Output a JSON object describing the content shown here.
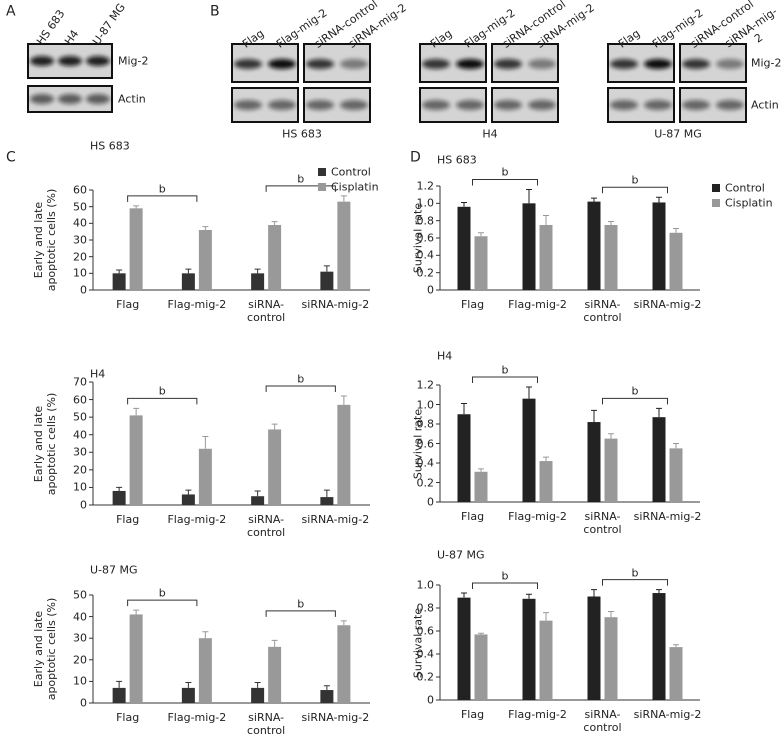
{
  "panels": [
    "A",
    "B",
    "C",
    "D"
  ],
  "blots": {
    "A": {
      "lanes": [
        "HS 683",
        "H4",
        "U-87 MG"
      ],
      "rows": [
        "Mig-2",
        "Actin"
      ]
    },
    "B": {
      "lanes": [
        "Flag",
        "Flag-mig-2",
        "siRNA-control",
        "siRNA-mig-2"
      ],
      "groups": [
        "HS 683",
        "H4",
        "U-87 MG"
      ],
      "rows": [
        "Mig-2",
        "Actin"
      ]
    }
  },
  "chart_data": [
    {
      "type": "bar",
      "title": "HS 683",
      "ylabel": "Early and late\napoptotic cells (%)",
      "categories": [
        "Flag",
        "Flag-mig-2",
        "siRNA-\ncontrol",
        "siRNA-mig-2"
      ],
      "series": [
        {
          "name": "Control",
          "color": "#333333",
          "values": [
            10,
            10,
            10,
            11
          ],
          "errors": [
            2,
            2.5,
            2.5,
            3.5
          ]
        },
        {
          "name": "Cisplatin",
          "color": "#999999",
          "values": [
            49,
            36,
            39,
            53
          ],
          "errors": [
            1.5,
            2,
            2,
            3.5
          ]
        }
      ],
      "ylim": [
        0,
        60
      ],
      "yticks": [
        0,
        10,
        20,
        30,
        40,
        50,
        60
      ],
      "legend": "upper right",
      "brackets": [
        {
          "label": "b",
          "between": [
            0,
            1
          ]
        },
        {
          "label": "b",
          "between": [
            2,
            3
          ]
        }
      ]
    },
    {
      "type": "bar",
      "title": "H4",
      "ylabel": "Early and late\napoptotic cells (%)",
      "categories": [
        "Flag",
        "Flag-mig-2",
        "siRNA-\ncontrol",
        "siRNA-mig-2"
      ],
      "series": [
        {
          "color": "#333333",
          "values": [
            8,
            6,
            5,
            4.5
          ],
          "errors": [
            2,
            2.5,
            3,
            4
          ]
        },
        {
          "color": "#999999",
          "values": [
            51,
            32,
            43,
            57
          ],
          "errors": [
            4,
            7,
            3,
            5
          ]
        }
      ],
      "ylim": [
        0,
        70
      ],
      "yticks": [
        0,
        10,
        20,
        30,
        40,
        50,
        60,
        70
      ],
      "brackets": [
        {
          "label": "b",
          "between": [
            0,
            1
          ]
        },
        {
          "label": "b",
          "between": [
            2,
            3
          ]
        }
      ]
    },
    {
      "type": "bar",
      "title": "U-87 MG",
      "ylabel": "Early and late\napoptotic cells (%)",
      "categories": [
        "Flag",
        "Flag-mig-2",
        "siRNA-\ncontrol",
        "siRNA-mig-2"
      ],
      "series": [
        {
          "color": "#333333",
          "values": [
            7,
            7,
            7,
            6
          ],
          "errors": [
            3,
            2.5,
            2.5,
            2
          ]
        },
        {
          "color": "#999999",
          "values": [
            41,
            30,
            26,
            36
          ],
          "errors": [
            2,
            3,
            3,
            2
          ]
        }
      ],
      "ylim": [
        0,
        50
      ],
      "yticks": [
        0,
        10,
        20,
        30,
        40,
        50
      ],
      "brackets": [
        {
          "label": "b",
          "between": [
            0,
            1
          ]
        },
        {
          "label": "b",
          "between": [
            2,
            3
          ]
        }
      ]
    },
    {
      "type": "bar",
      "title": "HS 683",
      "ylabel": "Survival rate",
      "categories": [
        "Flag",
        "Flag-mig-2",
        "siRNA-\ncontrol",
        "siRNA-mig-2"
      ],
      "series": [
        {
          "name": "Control",
          "color": "#222222",
          "values": [
            0.96,
            1.0,
            1.02,
            1.01
          ],
          "errors": [
            0.05,
            0.16,
            0.04,
            0.06
          ]
        },
        {
          "name": "Cisplatin",
          "color": "#999999",
          "values": [
            0.62,
            0.75,
            0.75,
            0.66
          ],
          "errors": [
            0.04,
            0.11,
            0.04,
            0.05
          ]
        }
      ],
      "ylim": [
        0,
        1.2
      ],
      "yticks": [
        0,
        0.2,
        0.4,
        0.6,
        0.8,
        {
          "value": 1,
          "label": "1.0"
        },
        1.2
      ],
      "legend": "right",
      "brackets": [
        {
          "label": "b",
          "between": [
            0,
            1
          ]
        },
        {
          "label": "b",
          "between": [
            2,
            3
          ]
        }
      ]
    },
    {
      "type": "bar",
      "title": "H4",
      "ylabel": "Survival rate",
      "categories": [
        "Flag",
        "Flag-mig-2",
        "siRNA-\ncontrol",
        "siRNA-mig-2"
      ],
      "series": [
        {
          "color": "#222222",
          "values": [
            0.9,
            1.06,
            0.82,
            0.87
          ],
          "errors": [
            0.11,
            0.12,
            0.12,
            0.09
          ]
        },
        {
          "color": "#999999",
          "values": [
            0.31,
            0.42,
            0.65,
            0.55
          ],
          "errors": [
            0.03,
            0.04,
            0.05,
            0.05
          ]
        }
      ],
      "ylim": [
        0,
        1.2
      ],
      "yticks": [
        0,
        0.2,
        0.4,
        0.6,
        0.8,
        {
          "value": 1,
          "label": "1.0"
        },
        1.2
      ],
      "brackets": [
        {
          "label": "b",
          "between": [
            0,
            1
          ]
        },
        {
          "label": "b",
          "between": [
            2,
            3
          ]
        }
      ]
    },
    {
      "type": "bar",
      "title": "U-87 MG",
      "ylabel": "Survival rate",
      "categories": [
        "Flag",
        "Flag-mig-2",
        "siRNA-\ncontrol",
        "siRNA-mig-2"
      ],
      "series": [
        {
          "color": "#222222",
          "values": [
            0.89,
            0.88,
            0.9,
            0.93
          ],
          "errors": [
            0.04,
            0.04,
            0.06,
            0.03
          ]
        },
        {
          "color": "#999999",
          "values": [
            0.57,
            0.69,
            0.72,
            0.46
          ],
          "errors": [
            0.01,
            0.07,
            0.05,
            0.02
          ]
        }
      ],
      "ylim": [
        0,
        1.0
      ],
      "yticks": [
        0,
        0.2,
        0.4,
        0.6,
        0.8,
        {
          "value": 1,
          "label": "1.0"
        }
      ],
      "brackets": [
        {
          "label": "b",
          "between": [
            0,
            1
          ]
        },
        {
          "label": "b",
          "between": [
            2,
            3
          ]
        }
      ]
    }
  ]
}
